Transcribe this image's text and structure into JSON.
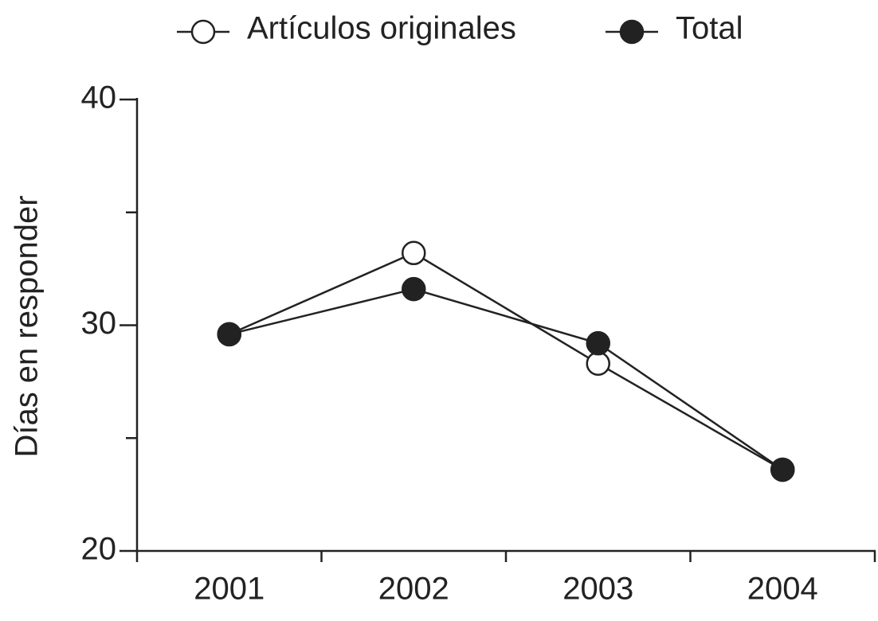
{
  "chart_data": {
    "type": "line",
    "y_label": "Días en responder",
    "categories": [
      "2001",
      "2002",
      "2003",
      "2004"
    ],
    "series": [
      {
        "name": "Artículos originales",
        "color": "#222222",
        "fill": "#ffffff",
        "values": [
          29.6,
          33.2,
          28.3,
          23.6
        ]
      },
      {
        "name": "Total",
        "color": "#222222",
        "fill": "#222222",
        "values": [
          29.6,
          31.6,
          29.2,
          23.6
        ]
      }
    ],
    "ylim": [
      20,
      40
    ],
    "yticks": [
      20,
      30,
      40
    ],
    "yminorticks": [
      25,
      35
    ]
  }
}
